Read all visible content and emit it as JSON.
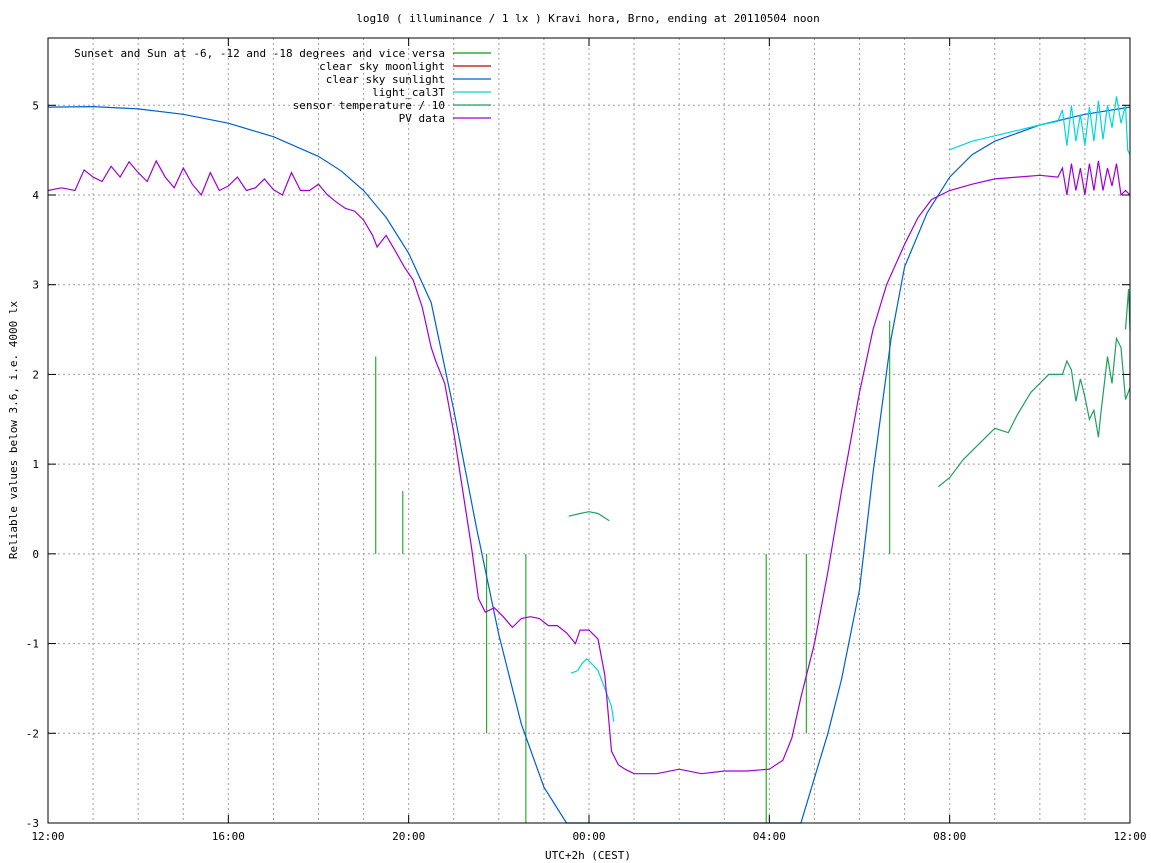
{
  "chart_data": {
    "type": "line",
    "title": "log10 ( illuminance / 1 lx ) Kravi hora, Brno, ending at 20110504 noon",
    "xlabel": "UTC+2h (CEST)",
    "ylabel": "Reliable values below 3.6, i.e. 4000 lx",
    "x_unit": "hours since 12:00 (UTC+2h)",
    "xlim": [
      0,
      24
    ],
    "ylim": [
      -3,
      5.75
    ],
    "x_ticks": [
      {
        "x": 0,
        "label": "12:00"
      },
      {
        "x": 4,
        "label": "16:00"
      },
      {
        "x": 8,
        "label": "20:00"
      },
      {
        "x": 12,
        "label": "00:00"
      },
      {
        "x": 16,
        "label": "04:00"
      },
      {
        "x": 20,
        "label": "08:00"
      },
      {
        "x": 24,
        "label": "12:00"
      }
    ],
    "y_ticks": [
      {
        "y": -3,
        "label": "-3"
      },
      {
        "y": -2,
        "label": "-2"
      },
      {
        "y": -1,
        "label": "-1"
      },
      {
        "y": 0,
        "label": "0"
      },
      {
        "y": 1,
        "label": "1"
      },
      {
        "y": 2,
        "label": "2"
      },
      {
        "y": 3,
        "label": "3"
      },
      {
        "y": 4,
        "label": "4"
      },
      {
        "y": 5,
        "label": "5"
      }
    ],
    "grid": true,
    "legend_position": "top-left",
    "series": [
      {
        "name": "Sunset and Sun at -6, -12 and -18 degrees and vice versa",
        "kind": "vlines",
        "color": "#00a000",
        "lines": [
          {
            "x": 7.27,
            "y0": 0,
            "y1": 2.2
          },
          {
            "x": 7.87,
            "y0": 0,
            "y1": 0.7
          },
          {
            "x": 9.73,
            "y0": -2.0,
            "y1": 0
          },
          {
            "x": 10.6,
            "y0": -3,
            "y1": 0
          },
          {
            "x": 15.93,
            "y0": -3,
            "y1": 0
          },
          {
            "x": 16.82,
            "y0": -2.0,
            "y1": 0
          },
          {
            "x": 18.67,
            "y0": 0,
            "y1": 2.6
          }
        ]
      },
      {
        "name": "clear sky moonlight",
        "color": "#c00000",
        "points": []
      },
      {
        "name": "clear sky sunlight",
        "color": "#0060d0",
        "points": [
          [
            0,
            4.98
          ],
          [
            1,
            4.985
          ],
          [
            2,
            4.96
          ],
          [
            3,
            4.9
          ],
          [
            4,
            4.8
          ],
          [
            5,
            4.65
          ],
          [
            6,
            4.43
          ],
          [
            6.5,
            4.27
          ],
          [
            7,
            4.05
          ],
          [
            7.5,
            3.75
          ],
          [
            8,
            3.35
          ],
          [
            8.5,
            2.8
          ],
          [
            9,
            1.6
          ],
          [
            9.5,
            0.3
          ],
          [
            10,
            -0.9
          ],
          [
            10.5,
            -1.9
          ],
          [
            11,
            -2.6
          ],
          [
            11.5,
            -3.0
          ],
          [
            16.7,
            -3.0
          ],
          [
            17,
            -2.5
          ],
          [
            17.3,
            -2.0
          ],
          [
            17.6,
            -1.4
          ],
          [
            18,
            -0.4
          ],
          [
            18.3,
            0.9
          ],
          [
            18.7,
            2.4
          ],
          [
            19,
            3.2
          ],
          [
            19.5,
            3.8
          ],
          [
            20,
            4.2
          ],
          [
            20.5,
            4.45
          ],
          [
            21,
            4.6
          ],
          [
            22,
            4.78
          ],
          [
            23,
            4.9
          ],
          [
            24,
            4.98
          ]
        ]
      },
      {
        "name": "light_cal3T",
        "color": "#00d8d8",
        "segments": [
          [
            [
              11.6,
              -1.33
            ],
            [
              11.75,
              -1.3
            ],
            [
              11.85,
              -1.22
            ],
            [
              11.95,
              -1.17
            ],
            [
              12.05,
              -1.22
            ],
            [
              12.2,
              -1.3
            ],
            [
              12.35,
              -1.5
            ],
            [
              12.5,
              -1.7
            ],
            [
              12.55,
              -1.87
            ]
          ],
          [
            [
              19.98,
              4.5
            ],
            [
              20.5,
              4.6
            ],
            [
              21,
              4.66
            ],
            [
              21.5,
              4.72
            ],
            [
              22,
              4.78
            ],
            [
              22.4,
              4.82
            ]
          ],
          [
            [
              22.4,
              4.82
            ],
            [
              22.5,
              4.95
            ],
            [
              22.6,
              4.55
            ],
            [
              22.7,
              5.0
            ],
            [
              22.8,
              4.6
            ],
            [
              22.9,
              4.9
            ],
            [
              23,
              4.55
            ],
            [
              23.1,
              4.98
            ],
            [
              23.2,
              4.6
            ],
            [
              23.3,
              5.05
            ],
            [
              23.4,
              4.62
            ],
            [
              23.5,
              5.0
            ],
            [
              23.6,
              4.75
            ],
            [
              23.7,
              5.1
            ],
            [
              23.8,
              4.8
            ],
            [
              23.9,
              5.0
            ],
            [
              23.95,
              4.5
            ],
            [
              24,
              4.45
            ]
          ]
        ]
      },
      {
        "name": "sensor temperature / 10",
        "color": "#20a060",
        "segments": [
          [
            [
              11.55,
              0.42
            ],
            [
              11.8,
              0.45
            ],
            [
              12,
              0.47
            ],
            [
              12.2,
              0.45
            ],
            [
              12.45,
              0.37
            ]
          ],
          [
            [
              19.75,
              0.75
            ],
            [
              20,
              0.85
            ],
            [
              20.3,
              1.05
            ],
            [
              20.6,
              1.2
            ],
            [
              21,
              1.4
            ],
            [
              21.3,
              1.35
            ],
            [
              21.5,
              1.55
            ],
            [
              21.8,
              1.8
            ],
            [
              22.2,
              2.0
            ],
            [
              22.5,
              2.0
            ],
            [
              22.6,
              2.15
            ],
            [
              22.7,
              2.05
            ],
            [
              22.8,
              1.7
            ],
            [
              22.9,
              1.95
            ],
            [
              23,
              1.75
            ],
            [
              23.1,
              1.5
            ],
            [
              23.2,
              1.6
            ],
            [
              23.3,
              1.3
            ],
            [
              23.35,
              1.55
            ],
            [
              23.5,
              2.2
            ],
            [
              23.6,
              1.9
            ],
            [
              23.7,
              2.4
            ],
            [
              23.8,
              2.3
            ],
            [
              23.9,
              1.72
            ],
            [
              24,
              1.85
            ]
          ],
          [
            [
              23.9,
              2.5
            ],
            [
              23.97,
              2.95
            ],
            [
              24,
              2.5
            ]
          ]
        ]
      },
      {
        "name": "PV data",
        "color": "#a000d8",
        "points": [
          [
            0,
            4.05
          ],
          [
            0.3,
            4.08
          ],
          [
            0.6,
            4.05
          ],
          [
            0.8,
            4.28
          ],
          [
            1,
            4.2
          ],
          [
            1.2,
            4.15
          ],
          [
            1.4,
            4.32
          ],
          [
            1.6,
            4.2
          ],
          [
            1.8,
            4.37
          ],
          [
            2,
            4.25
          ],
          [
            2.2,
            4.15
          ],
          [
            2.4,
            4.38
          ],
          [
            2.6,
            4.2
          ],
          [
            2.8,
            4.08
          ],
          [
            3,
            4.3
          ],
          [
            3.2,
            4.12
          ],
          [
            3.4,
            4.0
          ],
          [
            3.6,
            4.25
          ],
          [
            3.8,
            4.05
          ],
          [
            4,
            4.1
          ],
          [
            4.2,
            4.2
          ],
          [
            4.4,
            4.05
          ],
          [
            4.6,
            4.08
          ],
          [
            4.8,
            4.18
          ],
          [
            5,
            4.06
          ],
          [
            5.2,
            4.0
          ],
          [
            5.4,
            4.25
          ],
          [
            5.6,
            4.05
          ],
          [
            5.8,
            4.05
          ],
          [
            6,
            4.12
          ],
          [
            6.2,
            4.0
          ],
          [
            6.4,
            3.92
          ],
          [
            6.6,
            3.85
          ],
          [
            6.8,
            3.82
          ],
          [
            7,
            3.72
          ],
          [
            7.2,
            3.55
          ],
          [
            7.3,
            3.42
          ],
          [
            7.5,
            3.55
          ],
          [
            7.7,
            3.38
          ],
          [
            7.9,
            3.2
          ],
          [
            8.1,
            3.05
          ],
          [
            8.3,
            2.75
          ],
          [
            8.5,
            2.3
          ],
          [
            8.6,
            2.15
          ],
          [
            8.8,
            1.9
          ],
          [
            9,
            1.35
          ],
          [
            9.2,
            0.7
          ],
          [
            9.4,
            0.05
          ],
          [
            9.55,
            -0.5
          ],
          [
            9.7,
            -0.65
          ],
          [
            9.9,
            -0.6
          ],
          [
            10.1,
            -0.7
          ],
          [
            10.3,
            -0.82
          ],
          [
            10.5,
            -0.72
          ],
          [
            10.7,
            -0.7
          ],
          [
            10.9,
            -0.72
          ],
          [
            11.1,
            -0.8
          ],
          [
            11.3,
            -0.8
          ],
          [
            11.5,
            -0.88
          ],
          [
            11.7,
            -1.0
          ],
          [
            11.8,
            -0.85
          ],
          [
            12,
            -0.85
          ],
          [
            12.2,
            -0.95
          ],
          [
            12.35,
            -1.35
          ],
          [
            12.5,
            -2.2
          ],
          [
            12.65,
            -2.35
          ],
          [
            12.8,
            -2.4
          ],
          [
            13,
            -2.45
          ],
          [
            13.5,
            -2.45
          ],
          [
            14,
            -2.4
          ],
          [
            14.5,
            -2.45
          ],
          [
            15,
            -2.42
          ],
          [
            15.5,
            -2.42
          ],
          [
            16,
            -2.4
          ],
          [
            16.3,
            -2.3
          ],
          [
            16.5,
            -2.05
          ],
          [
            16.7,
            -1.6
          ],
          [
            17,
            -1.0
          ],
          [
            17.3,
            -0.2
          ],
          [
            17.6,
            0.7
          ],
          [
            18,
            1.8
          ],
          [
            18.3,
            2.5
          ],
          [
            18.6,
            3.0
          ],
          [
            19,
            3.45
          ],
          [
            19.3,
            3.75
          ],
          [
            19.6,
            3.95
          ],
          [
            20,
            4.05
          ],
          [
            20.5,
            4.12
          ],
          [
            21,
            4.18
          ],
          [
            21.5,
            4.2
          ],
          [
            22,
            4.22
          ],
          [
            22.4,
            4.2
          ],
          [
            22.5,
            4.3
          ],
          [
            22.6,
            4.0
          ],
          [
            22.7,
            4.35
          ],
          [
            22.8,
            4.05
          ],
          [
            22.9,
            4.3
          ],
          [
            23,
            4.0
          ],
          [
            23.1,
            4.35
          ],
          [
            23.2,
            4.05
          ],
          [
            23.3,
            4.38
          ],
          [
            23.4,
            4.05
          ],
          [
            23.5,
            4.3
          ],
          [
            23.6,
            4.1
          ],
          [
            23.7,
            4.35
          ],
          [
            23.8,
            4.0
          ],
          [
            23.9,
            4.05
          ],
          [
            24,
            4.0
          ]
        ]
      }
    ]
  }
}
